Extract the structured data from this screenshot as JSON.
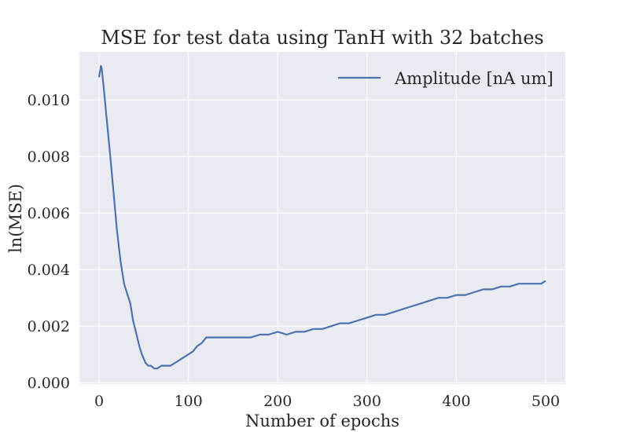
{
  "chart_data": {
    "type": "line",
    "title": "MSE for test data using TanH with 32 batches",
    "xlabel": "Number of epochs",
    "ylabel": "ln(MSE)",
    "xlim": [
      -22,
      522
    ],
    "ylim": [
      -5e-05,
      0.0117
    ],
    "xticks": [
      0,
      100,
      200,
      300,
      400,
      500
    ],
    "yticks": [
      0.0,
      0.002,
      0.004,
      0.006,
      0.008,
      0.01
    ],
    "xtick_labels": [
      "0",
      "100",
      "200",
      "300",
      "400",
      "500"
    ],
    "ytick_labels": [
      "0.000",
      "0.002",
      "0.004",
      "0.006",
      "0.008",
      "0.010"
    ],
    "grid": true,
    "legend_position": "top-right",
    "series": [
      {
        "name": "Amplitude [nA um]",
        "color": "#4c72b0",
        "x": [
          0,
          2,
          3,
          5,
          8,
          12,
          16,
          20,
          24,
          28,
          32,
          35,
          38,
          42,
          45,
          48,
          52,
          55,
          58,
          62,
          65,
          70,
          75,
          80,
          85,
          90,
          95,
          100,
          105,
          110,
          115,
          120,
          125,
          130,
          140,
          150,
          160,
          170,
          180,
          190,
          200,
          210,
          220,
          230,
          240,
          250,
          260,
          270,
          280,
          290,
          300,
          310,
          320,
          330,
          340,
          350,
          360,
          370,
          380,
          390,
          400,
          410,
          420,
          430,
          440,
          450,
          460,
          470,
          480,
          490,
          495,
          500
        ],
        "y": [
          0.0108,
          0.0112,
          0.0111,
          0.0105,
          0.0095,
          0.0082,
          0.0068,
          0.0054,
          0.0043,
          0.0035,
          0.0031,
          0.0028,
          0.0022,
          0.0017,
          0.0013,
          0.001,
          0.0007,
          0.0006,
          0.0006,
          0.0005,
          0.0005,
          0.0006,
          0.0006,
          0.0006,
          0.0007,
          0.0008,
          0.0009,
          0.001,
          0.0011,
          0.0013,
          0.0014,
          0.0016,
          0.0016,
          0.0016,
          0.0016,
          0.0016,
          0.0016,
          0.0016,
          0.0017,
          0.0017,
          0.0018,
          0.0017,
          0.0018,
          0.0018,
          0.0019,
          0.0019,
          0.002,
          0.0021,
          0.0021,
          0.0022,
          0.0023,
          0.0024,
          0.0024,
          0.0025,
          0.0026,
          0.0027,
          0.0028,
          0.0029,
          0.003,
          0.003,
          0.0031,
          0.0031,
          0.0032,
          0.0033,
          0.0033,
          0.0034,
          0.0034,
          0.0035,
          0.0035,
          0.0035,
          0.0035,
          0.0036
        ]
      }
    ]
  }
}
